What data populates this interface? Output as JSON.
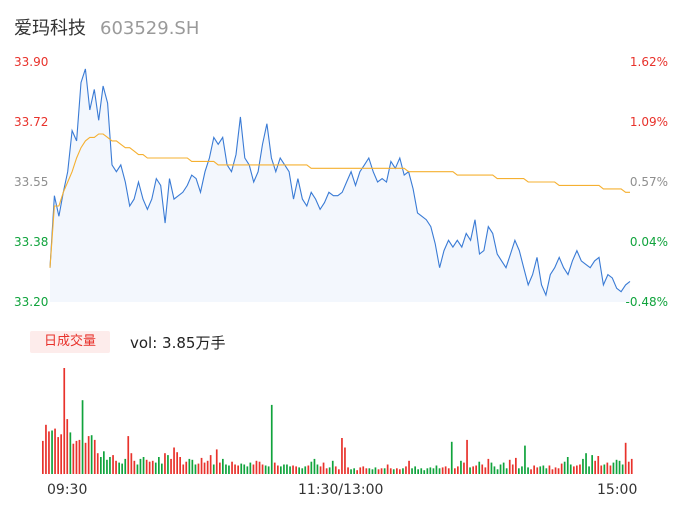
{
  "header": {
    "title": "爱玛科技",
    "code": "603529.SH"
  },
  "volume_panel": {
    "tab_label": "日成交量",
    "volume_text": "vol: 3.85万手"
  },
  "colors": {
    "price_line": "#3a7bd5",
    "price_fill": "#f3f7fd",
    "avg_line": "#f5b031",
    "up": "#e8322b",
    "down": "#10a33c",
    "neutral": "#8f8f8f"
  },
  "chart_data": {
    "type": "line",
    "y_left_ticks": [
      "33.90",
      "33.72",
      "33.55",
      "33.38",
      "33.20"
    ],
    "y_right_ticks": [
      "1.62%",
      "1.09%",
      "0.57%",
      "0.04%",
      "-0.48%"
    ],
    "ylim": [
      33.2,
      33.9
    ],
    "x_ticks": [
      "09:30",
      "11:30/13:00",
      "15:00"
    ],
    "series": [
      {
        "values": [
          33.3,
          33.51,
          33.45,
          33.52,
          33.58,
          33.7,
          33.67,
          33.84,
          33.88,
          33.76,
          33.82,
          33.73,
          33.83,
          33.78,
          33.6,
          33.58,
          33.6,
          33.55,
          33.48,
          33.5,
          33.55,
          33.5,
          33.47,
          33.5,
          33.56,
          33.54,
          33.43,
          33.56,
          33.5,
          33.51,
          33.52,
          33.54,
          33.57,
          33.56,
          33.52,
          33.58,
          33.62,
          33.68,
          33.66,
          33.68,
          33.6,
          33.58,
          33.63,
          33.74,
          33.62,
          33.6,
          33.55,
          33.58,
          33.66,
          33.72,
          33.62,
          33.58,
          33.62,
          33.6,
          33.58,
          33.5,
          33.56,
          33.5,
          33.48,
          33.52,
          33.5,
          33.47,
          33.49,
          33.52,
          33.51,
          33.51,
          33.52,
          33.55,
          33.58,
          33.54,
          33.58,
          33.6,
          33.62,
          33.58,
          33.55,
          33.56,
          33.55,
          33.61,
          33.59,
          33.62,
          33.57,
          33.58,
          33.53,
          33.46,
          33.45,
          33.44,
          33.42,
          33.37,
          33.3,
          33.35,
          33.38,
          33.36,
          33.38,
          33.36,
          33.4,
          33.38,
          33.44,
          33.34,
          33.35,
          33.42,
          33.4,
          33.34,
          33.32,
          33.3,
          33.34,
          33.38,
          33.35,
          33.3,
          33.25,
          33.28,
          33.33,
          33.25,
          33.22,
          33.28,
          33.3,
          33.33,
          33.3,
          33.28,
          33.32,
          33.35,
          33.32,
          33.31,
          33.3,
          33.32,
          33.33,
          33.25,
          33.28,
          33.27,
          33.24,
          33.23,
          33.25,
          33.26
        ]
      },
      {
        "values": [
          33.3,
          33.48,
          33.48,
          33.52,
          33.55,
          33.58,
          33.62,
          33.65,
          33.67,
          33.68,
          33.68,
          33.69,
          33.69,
          33.68,
          33.67,
          33.67,
          33.66,
          33.65,
          33.65,
          33.64,
          33.63,
          33.63,
          33.62,
          33.62,
          33.62,
          33.62,
          33.62,
          33.62,
          33.62,
          33.62,
          33.62,
          33.62,
          33.61,
          33.61,
          33.61,
          33.61,
          33.61,
          33.61,
          33.6,
          33.6,
          33.6,
          33.6,
          33.6,
          33.6,
          33.6,
          33.6,
          33.6,
          33.6,
          33.6,
          33.6,
          33.6,
          33.6,
          33.6,
          33.6,
          33.6,
          33.6,
          33.6,
          33.6,
          33.6,
          33.59,
          33.59,
          33.59,
          33.59,
          33.59,
          33.59,
          33.59,
          33.59,
          33.59,
          33.59,
          33.59,
          33.59,
          33.59,
          33.59,
          33.59,
          33.59,
          33.59,
          33.59,
          33.59,
          33.59,
          33.59,
          33.59,
          33.58,
          33.58,
          33.58,
          33.58,
          33.58,
          33.58,
          33.58,
          33.58,
          33.58,
          33.58,
          33.58,
          33.57,
          33.57,
          33.57,
          33.57,
          33.57,
          33.57,
          33.57,
          33.57,
          33.57,
          33.56,
          33.56,
          33.56,
          33.56,
          33.56,
          33.56,
          33.56,
          33.55,
          33.55,
          33.55,
          33.55,
          33.55,
          33.55,
          33.55,
          33.54,
          33.54,
          33.54,
          33.54,
          33.54,
          33.54,
          33.54,
          33.54,
          33.54,
          33.54,
          33.53,
          33.53,
          33.53,
          33.53,
          33.53,
          33.52,
          33.52
        ]
      }
    ],
    "volume": {
      "values": [
        3.5,
        5.2,
        4.5,
        4.6,
        4.8,
        3.9,
        4.2,
        11.2,
        5.8,
        4.4,
        3.2,
        3.5,
        3.6,
        7.8,
        3.3,
        4.0,
        4.1,
        3.6,
        2.2,
        1.8,
        2.4,
        1.5,
        1.8,
        2.0,
        1.4,
        1.2,
        1.1,
        1.6,
        4.0,
        2.2,
        1.4,
        1.0,
        1.6,
        1.8,
        1.5,
        1.3,
        1.4,
        1.2,
        1.8,
        1.1,
        2.2,
        2.0,
        1.6,
        2.8,
        2.3,
        1.8,
        1.0,
        1.3,
        1.6,
        1.5,
        1.0,
        1.1,
        1.7,
        1.2,
        1.4,
        2.0,
        1.0,
        2.6,
        1.2,
        1.6,
        1.0,
        0.9,
        1.3,
        1.0,
        0.9,
        1.1,
        1.0,
        0.8,
        1.2,
        1.0,
        1.4,
        1.3,
        1.0,
        0.9,
        0.8,
        7.3,
        1.2,
        0.9,
        0.8,
        1.0,
        1.0,
        0.8,
        0.9,
        0.8,
        0.7,
        0.6,
        0.8,
        0.9,
        1.3,
        1.6,
        1.0,
        0.8,
        1.2,
        0.6,
        0.7,
        1.4,
        0.8,
        0.5,
        3.8,
        2.8,
        0.7,
        0.5,
        0.6,
        0.4,
        0.7,
        0.8,
        0.6,
        0.6,
        0.5,
        0.7,
        0.5,
        0.6,
        0.6,
        1.0,
        0.6,
        0.5,
        0.6,
        0.5,
        0.6,
        0.8,
        1.4,
        0.6,
        0.8,
        0.5,
        0.6,
        0.4,
        0.6,
        0.7,
        0.6,
        0.9,
        0.6,
        0.7,
        0.8,
        0.6,
        3.4,
        0.6,
        0.8,
        1.4,
        1.2,
        3.6,
        0.7,
        0.8,
        0.9,
        1.3,
        1.0,
        0.7,
        1.6,
        1.2,
        0.8,
        0.5,
        1.0,
        1.2,
        0.6,
        1.5,
        1.0,
        1.7,
        0.6,
        0.8,
        3.0,
        0.7,
        0.5,
        0.9,
        0.7,
        0.8,
        0.9,
        0.6,
        0.9,
        0.5,
        0.7,
        0.6,
        1.1,
        1.3,
        1.8,
        1.0,
        0.8,
        0.9,
        1.0,
        1.6,
        2.2,
        0.8,
        2.0,
        1.4,
        1.9,
        0.9,
        1.0,
        1.2,
        0.9,
        1.2,
        1.5,
        1.4,
        1.0,
        3.3,
        1.3,
        1.6
      ]
    }
  }
}
